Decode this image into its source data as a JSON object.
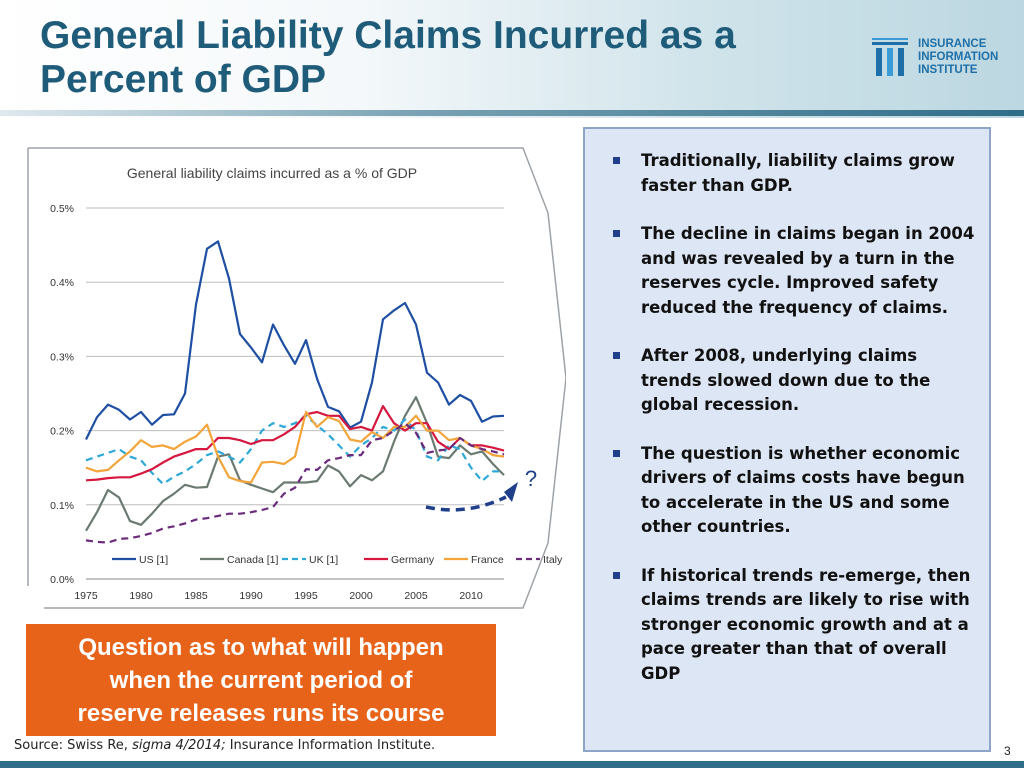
{
  "slide": {
    "title": "General Liability Claims Incurred as a\nPercent of GDP",
    "logo": {
      "name": "INSURANCE\nINFORMATION\nINSTITUTE",
      "icon": "iii-logo-icon",
      "color": "#1e6fa8"
    },
    "page_number": "3",
    "question_box": "Question as to what will happen\nwhen the current period of\nreserve releases runs its course",
    "question_box_color": "#e8631a",
    "question_mark": "?",
    "source_parts": {
      "a": "Source: Swiss Re, ",
      "b": "sigma 4/2014;",
      "c": " Insurance Information Institute."
    },
    "bullets": [
      "Traditionally, liability claims grow faster than GDP.",
      "The decline in claims began in 2004 and was revealed by a turn in the reserves cycle. Improved safety reduced the frequency of claims.",
      "After 2008, underlying claims trends slowed down due to the global recession.",
      "The question is whether economic drivers of claims costs have begun to accelerate in the US and some other countries.",
      "If historical trends re-emerge, then claims trends are likely to rise with stronger economic growth and at a pace greater than that of overall GDP"
    ]
  },
  "chart_data": {
    "type": "line",
    "title": "General liability claims incurred as a % of GDP",
    "xlabel": "",
    "ylabel": "",
    "ylim": [
      0,
      0.5
    ],
    "yticks": [
      0,
      0.1,
      0.2,
      0.3,
      0.4,
      0.5
    ],
    "ytick_labels": [
      "0.0%",
      "0.1%",
      "0.2%",
      "0.3%",
      "0.4%",
      "0.5%"
    ],
    "xlim": [
      1975,
      2013
    ],
    "xticks": [
      1975,
      1980,
      1985,
      1990,
      1995,
      2000,
      2005,
      2010
    ],
    "grid": true,
    "legend_position": "bottom",
    "x": [
      1975,
      1976,
      1977,
      1978,
      1979,
      1980,
      1981,
      1982,
      1983,
      1984,
      1985,
      1986,
      1987,
      1988,
      1989,
      1990,
      1991,
      1992,
      1993,
      1994,
      1995,
      1996,
      1997,
      1998,
      1999,
      2000,
      2001,
      2002,
      2003,
      2004,
      2005,
      2006,
      2007,
      2008,
      2009,
      2010,
      2011,
      2012,
      2013
    ],
    "series": [
      {
        "name": "US [1]",
        "color": "#1f4fa3",
        "dash": "solid",
        "values": [
          0.188,
          0.218,
          0.235,
          0.228,
          0.215,
          0.225,
          0.208,
          0.221,
          0.222,
          0.25,
          0.37,
          0.445,
          0.455,
          0.405,
          0.33,
          0.312,
          0.292,
          0.343,
          0.315,
          0.29,
          0.322,
          0.27,
          0.232,
          0.226,
          0.204,
          0.212,
          0.265,
          0.35,
          0.362,
          0.372,
          0.343,
          0.278,
          0.265,
          0.235,
          0.248,
          0.24,
          0.212,
          0.219,
          0.22
        ]
      },
      {
        "name": "Canada [1]",
        "color": "#6b7b71",
        "dash": "solid",
        "values": [
          0.065,
          0.09,
          0.12,
          0.11,
          0.078,
          0.073,
          0.088,
          0.105,
          0.115,
          0.127,
          0.123,
          0.124,
          0.165,
          0.168,
          0.133,
          0.127,
          0.122,
          0.117,
          0.13,
          0.13,
          0.13,
          0.132,
          0.153,
          0.145,
          0.125,
          0.14,
          0.133,
          0.145,
          0.185,
          0.22,
          0.245,
          0.21,
          0.165,
          0.163,
          0.18,
          0.168,
          0.172,
          0.155,
          0.14
        ]
      },
      {
        "name": "UK [1]",
        "color": "#2ea8d8",
        "dash": "dashed",
        "values": [
          0.16,
          0.165,
          0.17,
          0.175,
          0.165,
          0.16,
          0.143,
          0.128,
          0.138,
          0.145,
          0.155,
          0.167,
          0.172,
          0.165,
          0.157,
          0.175,
          0.2,
          0.21,
          0.205,
          0.21,
          0.22,
          0.207,
          0.195,
          0.18,
          0.165,
          0.18,
          0.19,
          0.205,
          0.2,
          0.215,
          0.2,
          0.165,
          0.16,
          0.18,
          0.175,
          0.15,
          0.132,
          0.145,
          0.145
        ]
      },
      {
        "name": "Germany",
        "color": "#d6173e",
        "dash": "solid",
        "values": [
          0.133,
          0.134,
          0.136,
          0.137,
          0.137,
          0.142,
          0.148,
          0.157,
          0.165,
          0.17,
          0.175,
          0.175,
          0.19,
          0.19,
          0.187,
          0.182,
          0.187,
          0.187,
          0.195,
          0.205,
          0.222,
          0.225,
          0.22,
          0.22,
          0.202,
          0.205,
          0.2,
          0.233,
          0.21,
          0.2,
          0.21,
          0.21,
          0.185,
          0.175,
          0.19,
          0.18,
          0.18,
          0.177,
          0.173
        ]
      },
      {
        "name": "France",
        "color": "#f3a43a",
        "dash": "solid",
        "values": [
          0.15,
          0.145,
          0.147,
          0.16,
          0.172,
          0.187,
          0.178,
          0.18,
          0.175,
          0.185,
          0.192,
          0.208,
          0.165,
          0.137,
          0.132,
          0.13,
          0.157,
          0.158,
          0.155,
          0.165,
          0.225,
          0.205,
          0.218,
          0.213,
          0.188,
          0.185,
          0.198,
          0.19,
          0.205,
          0.205,
          0.22,
          0.2,
          0.2,
          0.187,
          0.19,
          0.18,
          0.175,
          0.167,
          0.165
        ]
      },
      {
        "name": "Italy",
        "color": "#6b2a7c",
        "dash": "dashed",
        "values": [
          0.052,
          0.05,
          0.049,
          0.054,
          0.055,
          0.058,
          0.062,
          0.068,
          0.071,
          0.075,
          0.08,
          0.082,
          0.085,
          0.088,
          0.088,
          0.09,
          0.093,
          0.097,
          0.115,
          0.123,
          0.148,
          0.147,
          0.16,
          0.163,
          0.167,
          0.167,
          0.187,
          0.19,
          0.2,
          0.21,
          0.197,
          0.17,
          0.173,
          0.175,
          0.19,
          0.18,
          0.175,
          0.172,
          0.168
        ]
      }
    ]
  }
}
